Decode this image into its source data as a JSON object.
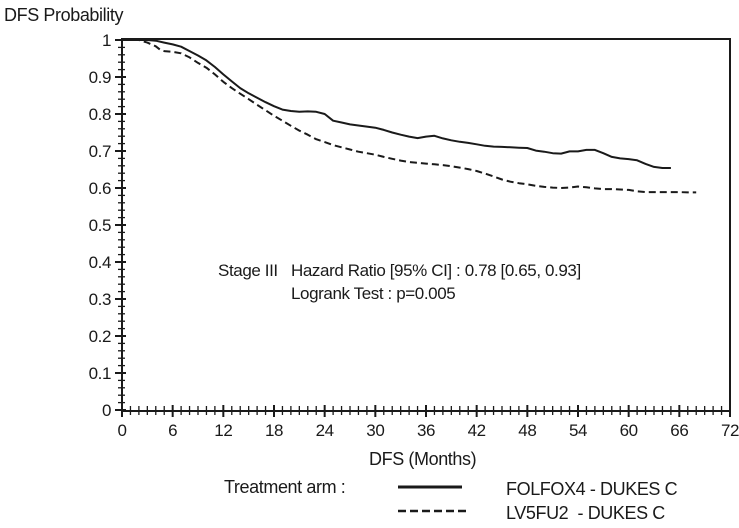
{
  "colors": {
    "line": "#1a1a1a",
    "background": "#ffffff"
  },
  "annotation": {
    "stage": "Stage III",
    "hazard_ratio": "Hazard Ratio [95% CI] : 0.78 [0.65, 0.93]",
    "logrank": "Logrank Test : p=0.005"
  },
  "legend": {
    "label": "Treatment arm :",
    "items": [
      {
        "label": "FOLFOX4 - DUKES C",
        "style": "solid"
      },
      {
        "label": "LV5FU2  - DUKES C",
        "style": "dashed"
      }
    ]
  },
  "chart_data": {
    "type": "line",
    "title": "",
    "xlabel": "DFS (Months)",
    "ylabel": "DFS Probability",
    "grid": false,
    "box": true,
    "legend_position": "bottom",
    "axes": {
      "x": {
        "label": "DFS (Months)",
        "min": 0,
        "max": 72,
        "major_ticks": [
          0,
          6,
          12,
          18,
          24,
          30,
          36,
          42,
          48,
          54,
          60,
          66,
          72
        ],
        "tick_labels": [
          "0",
          "6",
          "12",
          "18",
          "24",
          "30",
          "36",
          "42",
          "48",
          "54",
          "60",
          "66",
          "72"
        ],
        "minor_step": 1
      },
      "y": {
        "label": "DFS Probability",
        "min": 0,
        "max": 1,
        "major_ticks": [
          0,
          0.1,
          0.2,
          0.3,
          0.4,
          0.5,
          0.6,
          0.7,
          0.8,
          0.9,
          1
        ],
        "tick_labels": [
          "0",
          "0.1",
          "0.2",
          "0.3",
          "0.4",
          "0.5",
          "0.6",
          "0.7",
          "0.8",
          "0.9",
          "1"
        ],
        "minor_step": 0.02
      }
    },
    "annotations": [
      "Stage III",
      "Hazard Ratio [95% CI] : 0.78 [0.65, 0.93]",
      "Logrank Test : p=0.005"
    ],
    "series": [
      {
        "name": "FOLFOX4 - DUKES C",
        "style": "solid",
        "x": [
          0,
          3,
          4,
          5,
          6,
          7,
          8,
          9,
          10,
          11,
          12,
          13,
          14,
          15,
          16,
          17,
          18,
          19,
          20,
          21,
          22,
          23,
          24,
          25,
          26,
          27,
          28,
          29,
          30,
          31,
          32,
          33,
          34,
          35,
          36,
          37,
          38,
          39,
          40,
          41,
          42,
          43,
          44,
          45,
          46,
          47,
          48,
          49,
          50,
          51,
          52,
          53,
          54,
          55,
          56,
          57,
          58,
          59,
          60,
          61,
          62,
          63,
          64,
          65
        ],
        "y": [
          1,
          1,
          0.998,
          0.993,
          0.988,
          0.982,
          0.97,
          0.958,
          0.945,
          0.927,
          0.907,
          0.888,
          0.87,
          0.856,
          0.844,
          0.832,
          0.821,
          0.812,
          0.808,
          0.806,
          0.807,
          0.806,
          0.8,
          0.782,
          0.777,
          0.772,
          0.769,
          0.766,
          0.763,
          0.757,
          0.75,
          0.744,
          0.739,
          0.735,
          0.739,
          0.741,
          0.734,
          0.729,
          0.725,
          0.722,
          0.718,
          0.714,
          0.712,
          0.711,
          0.71,
          0.709,
          0.708,
          0.701,
          0.698,
          0.694,
          0.693,
          0.699,
          0.699,
          0.703,
          0.703,
          0.694,
          0.684,
          0.68,
          0.678,
          0.675,
          0.665,
          0.657,
          0.654,
          0.654
        ]
      },
      {
        "name": "LV5FU2  - DUKES C",
        "style": "dashed",
        "x": [
          0,
          2,
          3,
          4,
          4.5,
          5,
          6,
          7,
          8,
          9,
          10,
          11,
          12,
          13,
          14,
          15,
          16,
          17,
          18,
          19,
          20,
          21,
          22,
          23,
          24,
          25,
          26,
          27,
          28,
          29,
          30,
          31,
          32,
          33,
          34,
          35,
          36,
          37,
          38,
          39,
          40,
          41,
          42,
          43,
          44,
          45,
          46,
          47,
          48,
          49,
          50,
          51,
          52,
          53,
          54,
          55,
          56,
          57,
          58,
          59,
          60,
          61,
          62,
          63,
          64,
          65,
          66,
          67,
          68
        ],
        "y": [
          1,
          1,
          0.993,
          0.983,
          0.974,
          0.97,
          0.968,
          0.964,
          0.953,
          0.938,
          0.925,
          0.907,
          0.887,
          0.87,
          0.855,
          0.84,
          0.825,
          0.81,
          0.795,
          0.782,
          0.768,
          0.755,
          0.744,
          0.732,
          0.724,
          0.716,
          0.71,
          0.704,
          0.698,
          0.694,
          0.69,
          0.684,
          0.679,
          0.674,
          0.67,
          0.668,
          0.666,
          0.664,
          0.662,
          0.659,
          0.655,
          0.651,
          0.646,
          0.639,
          0.631,
          0.623,
          0.617,
          0.613,
          0.61,
          0.606,
          0.603,
          0.601,
          0.6,
          0.601,
          0.604,
          0.602,
          0.599,
          0.597,
          0.597,
          0.596,
          0.595,
          0.591,
          0.589,
          0.589,
          0.589,
          0.589,
          0.589,
          0.588,
          0.588
        ]
      }
    ]
  }
}
